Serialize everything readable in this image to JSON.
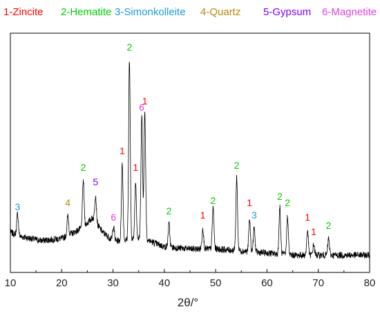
{
  "chart_data": {
    "type": "line",
    "xlabel": "2θ/°",
    "ylabel": "",
    "xlim": [
      10,
      80
    ],
    "ylim": [
      0,
      100
    ],
    "x_ticks": [
      "10",
      "20",
      "30",
      "40",
      "50",
      "60",
      "70",
      "80"
    ],
    "y_ticks_labeled": false,
    "grid": false,
    "legend_position": "top",
    "legend": [
      {
        "label": "1-Zincite",
        "color": "#ff0000"
      },
      {
        "label": "2-Hematite",
        "color": "#00cc00"
      },
      {
        "label": "3-Simonkolleite",
        "color": "#1e9bd7"
      },
      {
        "label": "4-Quartz",
        "color": "#b8860b"
      },
      {
        "label": "5-Gypsum",
        "color": "#7f00ff"
      },
      {
        "label": "6-Magnetite",
        "color": "#e040e0"
      }
    ],
    "series": [
      {
        "color": "#000000",
        "baseline": [
          [
            10,
            12
          ],
          [
            12,
            10
          ],
          [
            16,
            8
          ],
          [
            20,
            9
          ],
          [
            24,
            14
          ],
          [
            26,
            19
          ],
          [
            28,
            12
          ],
          [
            30,
            8
          ],
          [
            32,
            8
          ],
          [
            36,
            9
          ],
          [
            40,
            5
          ],
          [
            45,
            4
          ],
          [
            50,
            4
          ],
          [
            55,
            3
          ],
          [
            60,
            2
          ],
          [
            65,
            1
          ],
          [
            70,
            1
          ],
          [
            75,
            1
          ],
          [
            80,
            1
          ]
        ],
        "peaks": [
          {
            "x": 11.4,
            "y": 21
          },
          {
            "x": 21.2,
            "y": 20
          },
          {
            "x": 24.2,
            "y": 37
          },
          {
            "x": 26.6,
            "y": 30
          },
          {
            "x": 30.1,
            "y": 15
          },
          {
            "x": 31.8,
            "y": 45
          },
          {
            "x": 33.2,
            "y": 95
          },
          {
            "x": 34.4,
            "y": 37
          },
          {
            "x": 35.6,
            "y": 68
          },
          {
            "x": 36.2,
            "y": 70
          },
          {
            "x": 40.9,
            "y": 16
          },
          {
            "x": 47.5,
            "y": 14
          },
          {
            "x": 49.5,
            "y": 24
          },
          {
            "x": 54.1,
            "y": 39
          },
          {
            "x": 56.6,
            "y": 18
          },
          {
            "x": 57.5,
            "y": 14
          },
          {
            "x": 62.5,
            "y": 24
          },
          {
            "x": 64.0,
            "y": 20
          },
          {
            "x": 67.9,
            "y": 13
          },
          {
            "x": 69.1,
            "y": 6
          },
          {
            "x": 72.0,
            "y": 9
          }
        ]
      }
    ],
    "annotations": [
      {
        "text": "3",
        "x": 11.4,
        "y": 22,
        "color": "#1e9bd7"
      },
      {
        "text": "4",
        "x": 21.2,
        "y": 24,
        "color": "#b8860b",
        "big": true
      },
      {
        "text": "2",
        "x": 24.2,
        "y": 41,
        "color": "#00cc00"
      },
      {
        "text": "5",
        "x": 26.6,
        "y": 34,
        "color": "#7f00ff"
      },
      {
        "text": "6",
        "x": 30.1,
        "y": 17,
        "color": "#e040e0"
      },
      {
        "text": "1",
        "x": 31.8,
        "y": 49,
        "color": "#ff0000"
      },
      {
        "text": "2",
        "x": 33.2,
        "y": 99,
        "color": "#00cc00"
      },
      {
        "text": "1",
        "x": 34.4,
        "y": 41,
        "color": "#ff0000"
      },
      {
        "text": "6",
        "x": 35.6,
        "y": 70,
        "color": "#e040e0"
      },
      {
        "text": "1",
        "x": 36.2,
        "y": 73,
        "color": "#ff0000"
      },
      {
        "text": "2",
        "x": 40.9,
        "y": 20,
        "color": "#00cc00"
      },
      {
        "text": "1",
        "x": 47.5,
        "y": 18,
        "color": "#ff0000"
      },
      {
        "text": "2",
        "x": 49.5,
        "y": 25,
        "color": "#00cc00"
      },
      {
        "text": "2",
        "x": 54.1,
        "y": 42,
        "color": "#00cc00"
      },
      {
        "text": "1",
        "x": 56.6,
        "y": 24,
        "color": "#ff0000"
      },
      {
        "text": "3",
        "x": 57.5,
        "y": 18,
        "color": "#1e9bd7"
      },
      {
        "text": "2",
        "x": 62.5,
        "y": 27,
        "color": "#00cc00"
      },
      {
        "text": "2",
        "x": 64.0,
        "y": 24,
        "color": "#00cc00"
      },
      {
        "text": "1",
        "x": 67.9,
        "y": 17,
        "color": "#ff0000"
      },
      {
        "text": "1",
        "x": 69.1,
        "y": 10,
        "color": "#ff0000"
      },
      {
        "text": "2",
        "x": 72.0,
        "y": 13,
        "color": "#00cc00"
      }
    ]
  }
}
